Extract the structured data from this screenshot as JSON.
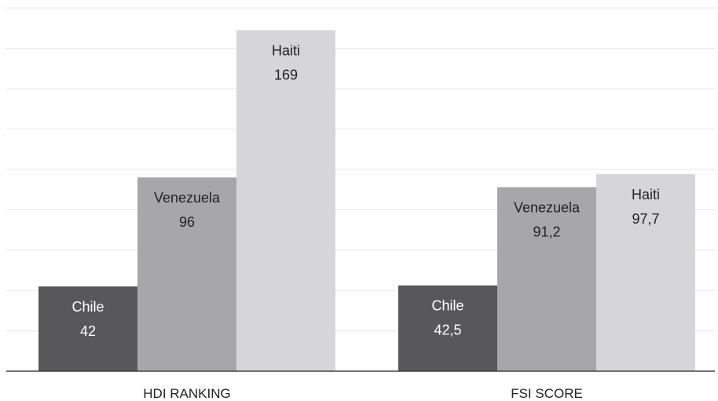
{
  "chart_data": {
    "type": "bar",
    "title": "",
    "xlabel": "",
    "ylabel": "",
    "ylim": [
      0,
      180
    ],
    "grid": true,
    "legend": "none",
    "categories": [
      "HDI RANKING",
      "FSI SCORE"
    ],
    "series": [
      {
        "name": "Chile",
        "values": [
          42,
          42.5
        ],
        "value_labels": [
          "42",
          "42,5"
        ],
        "color": "#58585a",
        "label_color": "#ffffff"
      },
      {
        "name": "Venezuela",
        "values": [
          96,
          91.2
        ],
        "value_labels": [
          "96",
          "91,2"
        ],
        "color": "#a7a7aa",
        "label_color": "#222222"
      },
      {
        "name": "Haiti",
        "values": [
          169,
          97.7
        ],
        "value_labels": [
          "169",
          "97,7"
        ],
        "color": "#d6d6d8",
        "label_color": "#222222"
      }
    ]
  }
}
